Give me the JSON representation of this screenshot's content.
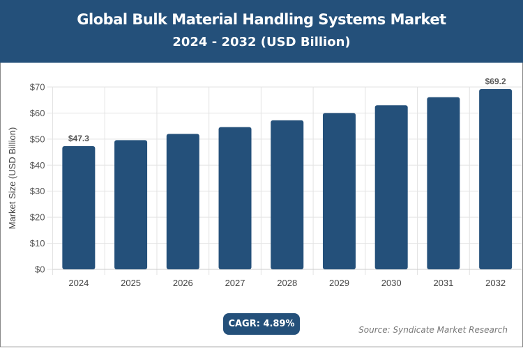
{
  "header": {
    "title": "Global Bulk Material Handling Systems Market",
    "subtitle": "2024 - 2032 (USD Billion)"
  },
  "chart_data": {
    "type": "bar",
    "categories": [
      "2024",
      "2025",
      "2026",
      "2027",
      "2028",
      "2029",
      "2030",
      "2031",
      "2032"
    ],
    "values": [
      47.3,
      49.6,
      52.0,
      54.6,
      57.2,
      60.0,
      63.0,
      66.1,
      69.2
    ],
    "data_labels": {
      "0": "$47.3",
      "8": "$69.2"
    },
    "ylabel": "Market Size (USD Billion)",
    "xlabel": "",
    "ylim": [
      0,
      70
    ],
    "yticks": [
      "$0",
      "$10",
      "$20",
      "$30",
      "$40",
      "$50",
      "$60",
      "$70"
    ],
    "grid": true,
    "bar_color": "#24507a"
  },
  "cagr": "CAGR: 4.89%",
  "source": "Source: Syndicate Market Research"
}
